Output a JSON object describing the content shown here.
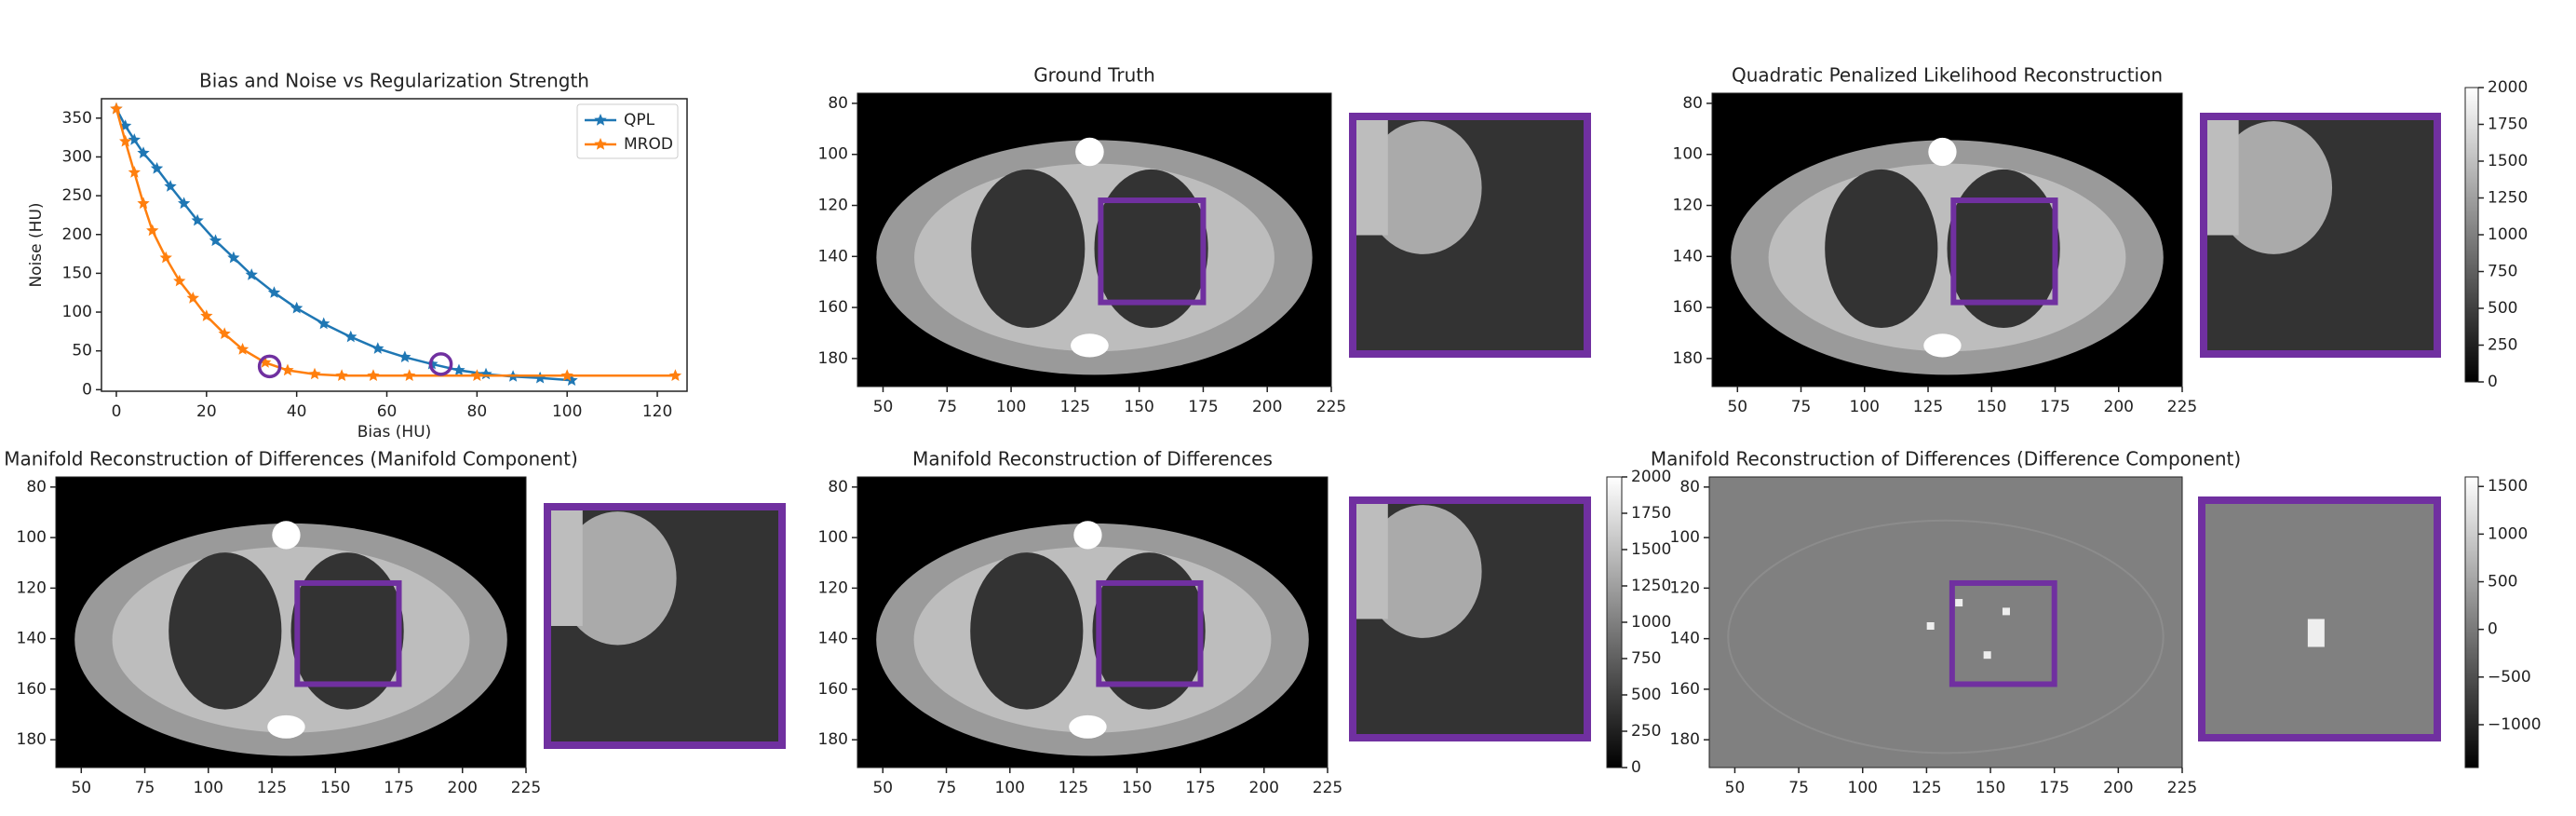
{
  "chart_data": [
    {
      "type": "line",
      "title": "Bias and Noise vs Regularization Strength",
      "x_label": "Bias (HU)",
      "y_label": "Noise (HU)",
      "series": [
        {
          "name": "QPL",
          "color": "#1f77b4",
          "x": [
            0,
            2,
            4,
            6,
            9,
            12,
            15,
            18,
            22,
            26,
            30,
            35,
            40,
            46,
            52,
            58,
            64,
            70,
            76,
            82,
            88,
            94,
            101
          ],
          "values": [
            362,
            340,
            322,
            305,
            285,
            262,
            240,
            218,
            192,
            170,
            148,
            125,
            105,
            85,
            68,
            53,
            42,
            33,
            25,
            20,
            17,
            15,
            12
          ]
        },
        {
          "name": "MROD",
          "color": "#ff7f0e",
          "x": [
            0,
            2,
            4,
            6,
            8,
            11,
            14,
            17,
            20,
            24,
            28,
            33,
            38,
            44,
            50,
            57,
            65,
            80,
            100,
            124
          ],
          "values": [
            362,
            320,
            280,
            240,
            205,
            170,
            140,
            118,
            95,
            72,
            52,
            35,
            25,
            20,
            18,
            18,
            18,
            18,
            18,
            18
          ]
        }
      ],
      "highlights": [
        {
          "x": 34,
          "y": 30,
          "color": "#7030a0"
        },
        {
          "x": 72,
          "y": 33,
          "color": "#7030a0"
        }
      ],
      "legend": "upper right",
      "xlim": [
        -3.3,
        126.6
      ],
      "xticks": [
        0,
        20,
        40,
        60,
        80,
        100,
        120
      ],
      "ylim": [
        -2,
        375
      ],
      "yticks": [
        0,
        50,
        100,
        150,
        200,
        250,
        300,
        350
      ]
    },
    {
      "type": "image",
      "title": "Ground Truth",
      "xlim": [
        40,
        225
      ],
      "xticks": [
        50,
        75,
        100,
        125,
        150,
        175,
        200,
        225
      ],
      "ylim": [
        191,
        76
      ],
      "yticks": [
        80,
        100,
        120,
        140,
        160,
        180
      ],
      "roi": {
        "x": [
          135,
          175
        ],
        "y": [
          118,
          158
        ]
      }
    },
    {
      "type": "image",
      "title": "Quadratic Penalized Likelihood Reconstruction",
      "xlim": [
        40,
        225
      ],
      "xticks": [
        50,
        75,
        100,
        125,
        150,
        175,
        200,
        225
      ],
      "ylim": [
        191,
        76
      ],
      "yticks": [
        80,
        100,
        120,
        140,
        160,
        180
      ],
      "roi": {
        "x": [
          135,
          175
        ],
        "y": [
          118,
          158
        ]
      },
      "colorbar": {
        "ylim": [
          0,
          2000
        ],
        "yticks": [
          0,
          250,
          500,
          750,
          1000,
          1250,
          1500,
          1750,
          2000
        ]
      }
    },
    {
      "type": "image",
      "title": "Manifold Reconstruction of Differences (Manifold Component)",
      "xlim": [
        40,
        225
      ],
      "xticks": [
        50,
        75,
        100,
        125,
        150,
        175,
        200,
        225
      ],
      "ylim": [
        191,
        76
      ],
      "yticks": [
        80,
        100,
        120,
        140,
        160,
        180
      ],
      "roi": {
        "x": [
          135,
          175
        ],
        "y": [
          118,
          158
        ]
      }
    },
    {
      "type": "image",
      "title": "Manifold Reconstruction of Differences",
      "xlim": [
        40,
        225
      ],
      "xticks": [
        50,
        75,
        100,
        125,
        150,
        175,
        200,
        225
      ],
      "ylim": [
        191,
        76
      ],
      "yticks": [
        80,
        100,
        120,
        140,
        160,
        180
      ],
      "roi": {
        "x": [
          135,
          175
        ],
        "y": [
          118,
          158
        ]
      },
      "colorbar": {
        "ylim": [
          0,
          2000
        ],
        "yticks": [
          0,
          250,
          500,
          750,
          1000,
          1250,
          1500,
          1750,
          2000
        ]
      }
    },
    {
      "type": "image",
      "title": "Manifold Reconstruction of Differences (Difference Component)",
      "xlim": [
        40,
        225
      ],
      "xticks": [
        50,
        75,
        100,
        125,
        150,
        175,
        200,
        225
      ],
      "ylim": [
        191,
        76
      ],
      "yticks": [
        80,
        100,
        120,
        140,
        160,
        180
      ],
      "roi": {
        "x": [
          135,
          175
        ],
        "y": [
          118,
          158
        ]
      },
      "colorbar": {
        "ylim": [
          -1450,
          1600
        ],
        "yticks": [
          {
            "value": -1000,
            "label": "−1000"
          },
          {
            "value": -500,
            "label": "−500"
          },
          0,
          500,
          1000,
          1500
        ]
      }
    }
  ]
}
